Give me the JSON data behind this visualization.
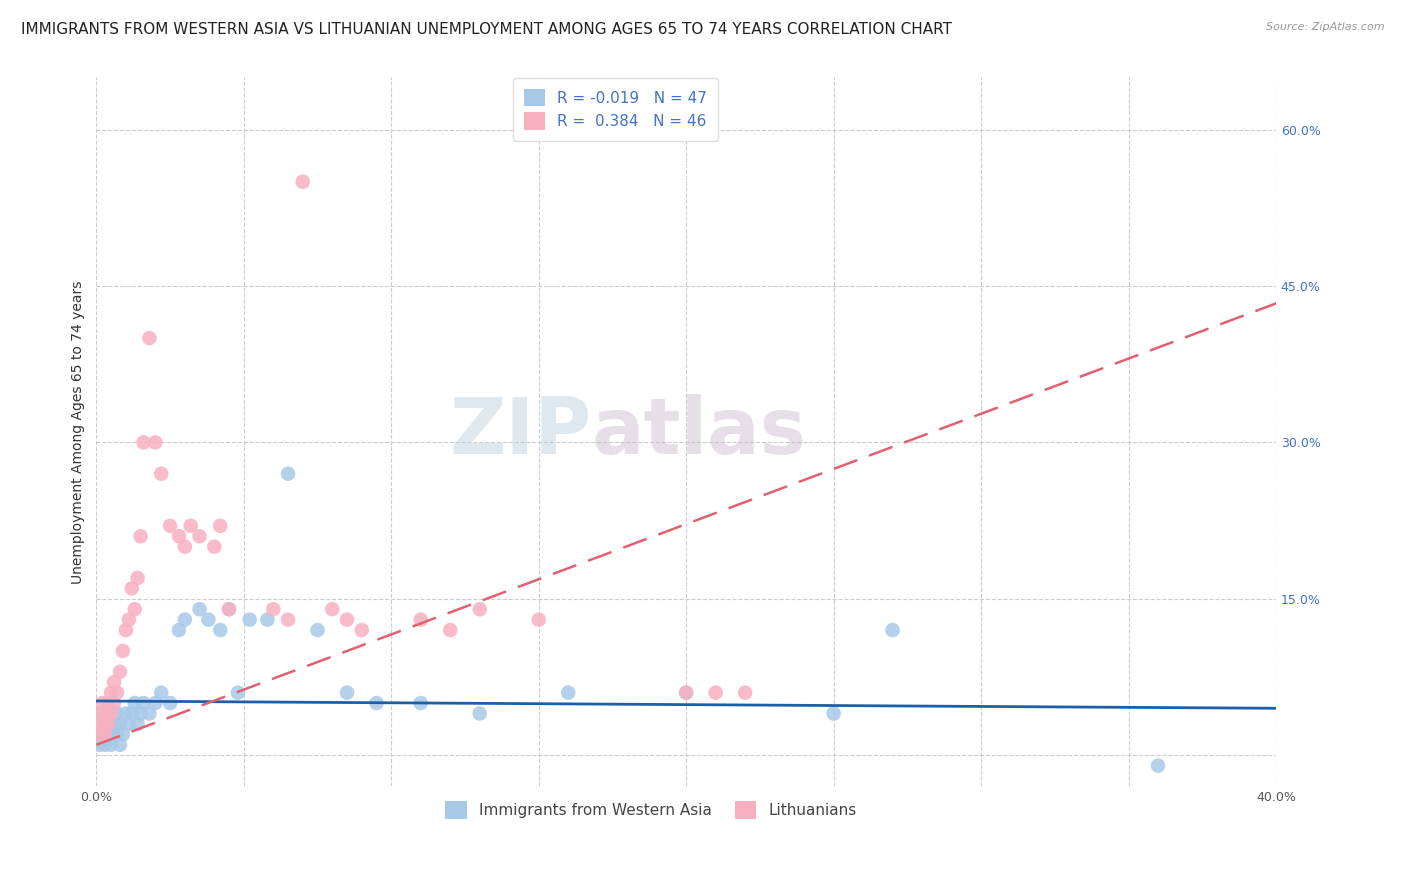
{
  "title": "IMMIGRANTS FROM WESTERN ASIA VS LITHUANIAN UNEMPLOYMENT AMONG AGES 65 TO 74 YEARS CORRELATION CHART",
  "source": "Source: ZipAtlas.com",
  "ylabel": "Unemployment Among Ages 65 to 74 years",
  "xlim": [
    0.0,
    0.4
  ],
  "ylim": [
    -0.03,
    0.65
  ],
  "xticks": [
    0.0,
    0.05,
    0.1,
    0.15,
    0.2,
    0.25,
    0.3,
    0.35,
    0.4
  ],
  "xticklabels": [
    "0.0%",
    "",
    "",
    "",
    "",
    "",
    "",
    "",
    "40.0%"
  ],
  "right_yticks": [
    0.0,
    0.15,
    0.3,
    0.45,
    0.6
  ],
  "right_yticklabels": [
    "",
    "15.0%",
    "30.0%",
    "45.0%",
    "60.0%"
  ],
  "grid_color": "#cccccc",
  "background_color": "#ffffff",
  "blue_color": "#a8c8e8",
  "pink_color": "#f8b0c0",
  "blue_line_color": "#1a5fa8",
  "pink_line_color": "#e06070",
  "legend_r1": "R = -0.019",
  "legend_n1": "N = 47",
  "legend_r2": "R =  0.384",
  "legend_n2": "N = 46",
  "blue_scatter_x": [
    0.001,
    0.002,
    0.002,
    0.003,
    0.003,
    0.004,
    0.004,
    0.005,
    0.005,
    0.006,
    0.006,
    0.007,
    0.007,
    0.008,
    0.008,
    0.009,
    0.01,
    0.011,
    0.012,
    0.013,
    0.014,
    0.015,
    0.016,
    0.018,
    0.02,
    0.022,
    0.025,
    0.028,
    0.03,
    0.035,
    0.038,
    0.042,
    0.045,
    0.048,
    0.052,
    0.058,
    0.065,
    0.075,
    0.085,
    0.095,
    0.11,
    0.13,
    0.16,
    0.2,
    0.25,
    0.27,
    0.36
  ],
  "blue_scatter_y": [
    0.01,
    0.02,
    0.04,
    0.01,
    0.03,
    0.02,
    0.04,
    0.01,
    0.03,
    0.02,
    0.03,
    0.02,
    0.04,
    0.01,
    0.03,
    0.02,
    0.04,
    0.03,
    0.04,
    0.05,
    0.03,
    0.04,
    0.05,
    0.04,
    0.05,
    0.06,
    0.05,
    0.12,
    0.13,
    0.14,
    0.13,
    0.12,
    0.14,
    0.06,
    0.13,
    0.13,
    0.27,
    0.12,
    0.06,
    0.05,
    0.05,
    0.04,
    0.06,
    0.06,
    0.04,
    0.12,
    -0.01
  ],
  "pink_scatter_x": [
    0.001,
    0.001,
    0.002,
    0.002,
    0.003,
    0.003,
    0.004,
    0.004,
    0.005,
    0.005,
    0.006,
    0.006,
    0.007,
    0.008,
    0.009,
    0.01,
    0.011,
    0.012,
    0.013,
    0.014,
    0.015,
    0.016,
    0.018,
    0.02,
    0.022,
    0.025,
    0.028,
    0.03,
    0.032,
    0.035,
    0.04,
    0.042,
    0.045,
    0.06,
    0.065,
    0.07,
    0.08,
    0.085,
    0.09,
    0.11,
    0.12,
    0.13,
    0.15,
    0.2,
    0.21,
    0.22
  ],
  "pink_scatter_y": [
    0.02,
    0.04,
    0.03,
    0.05,
    0.02,
    0.04,
    0.03,
    0.05,
    0.04,
    0.06,
    0.05,
    0.07,
    0.06,
    0.08,
    0.1,
    0.12,
    0.13,
    0.16,
    0.14,
    0.17,
    0.21,
    0.3,
    0.4,
    0.3,
    0.27,
    0.22,
    0.21,
    0.2,
    0.22,
    0.21,
    0.2,
    0.22,
    0.14,
    0.14,
    0.13,
    0.55,
    0.14,
    0.13,
    0.12,
    0.13,
    0.12,
    0.14,
    0.13,
    0.06,
    0.06,
    0.06
  ],
  "title_fontsize": 11,
  "axis_label_fontsize": 10,
  "tick_fontsize": 9,
  "legend_fontsize": 11
}
